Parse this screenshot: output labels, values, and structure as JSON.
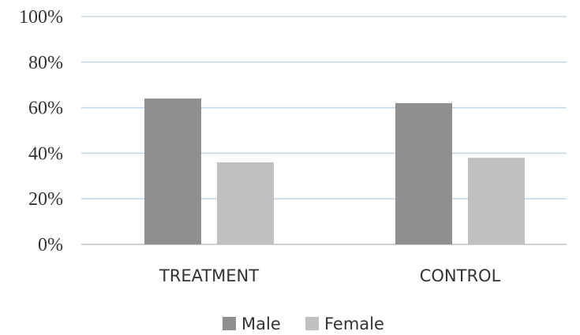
{
  "chart_data": {
    "type": "bar",
    "categories": [
      "TREATMENT",
      "CONTROL"
    ],
    "series": [
      {
        "name": "Male",
        "values": [
          64,
          62
        ],
        "color": "#8f8f8f"
      },
      {
        "name": "Female",
        "values": [
          36,
          38
        ],
        "color": "#c0c0c0"
      }
    ],
    "y_tick_labels": [
      "0%",
      "20%",
      "40%",
      "60%",
      "80%",
      "100%"
    ],
    "y_ticks": [
      0,
      20,
      40,
      60,
      80,
      100
    ],
    "ylim": [
      0,
      100
    ],
    "xlabel": "",
    "ylabel": "",
    "title": "",
    "grid": true,
    "grid_color": "#c5d5e4",
    "legend_position": "bottom"
  }
}
